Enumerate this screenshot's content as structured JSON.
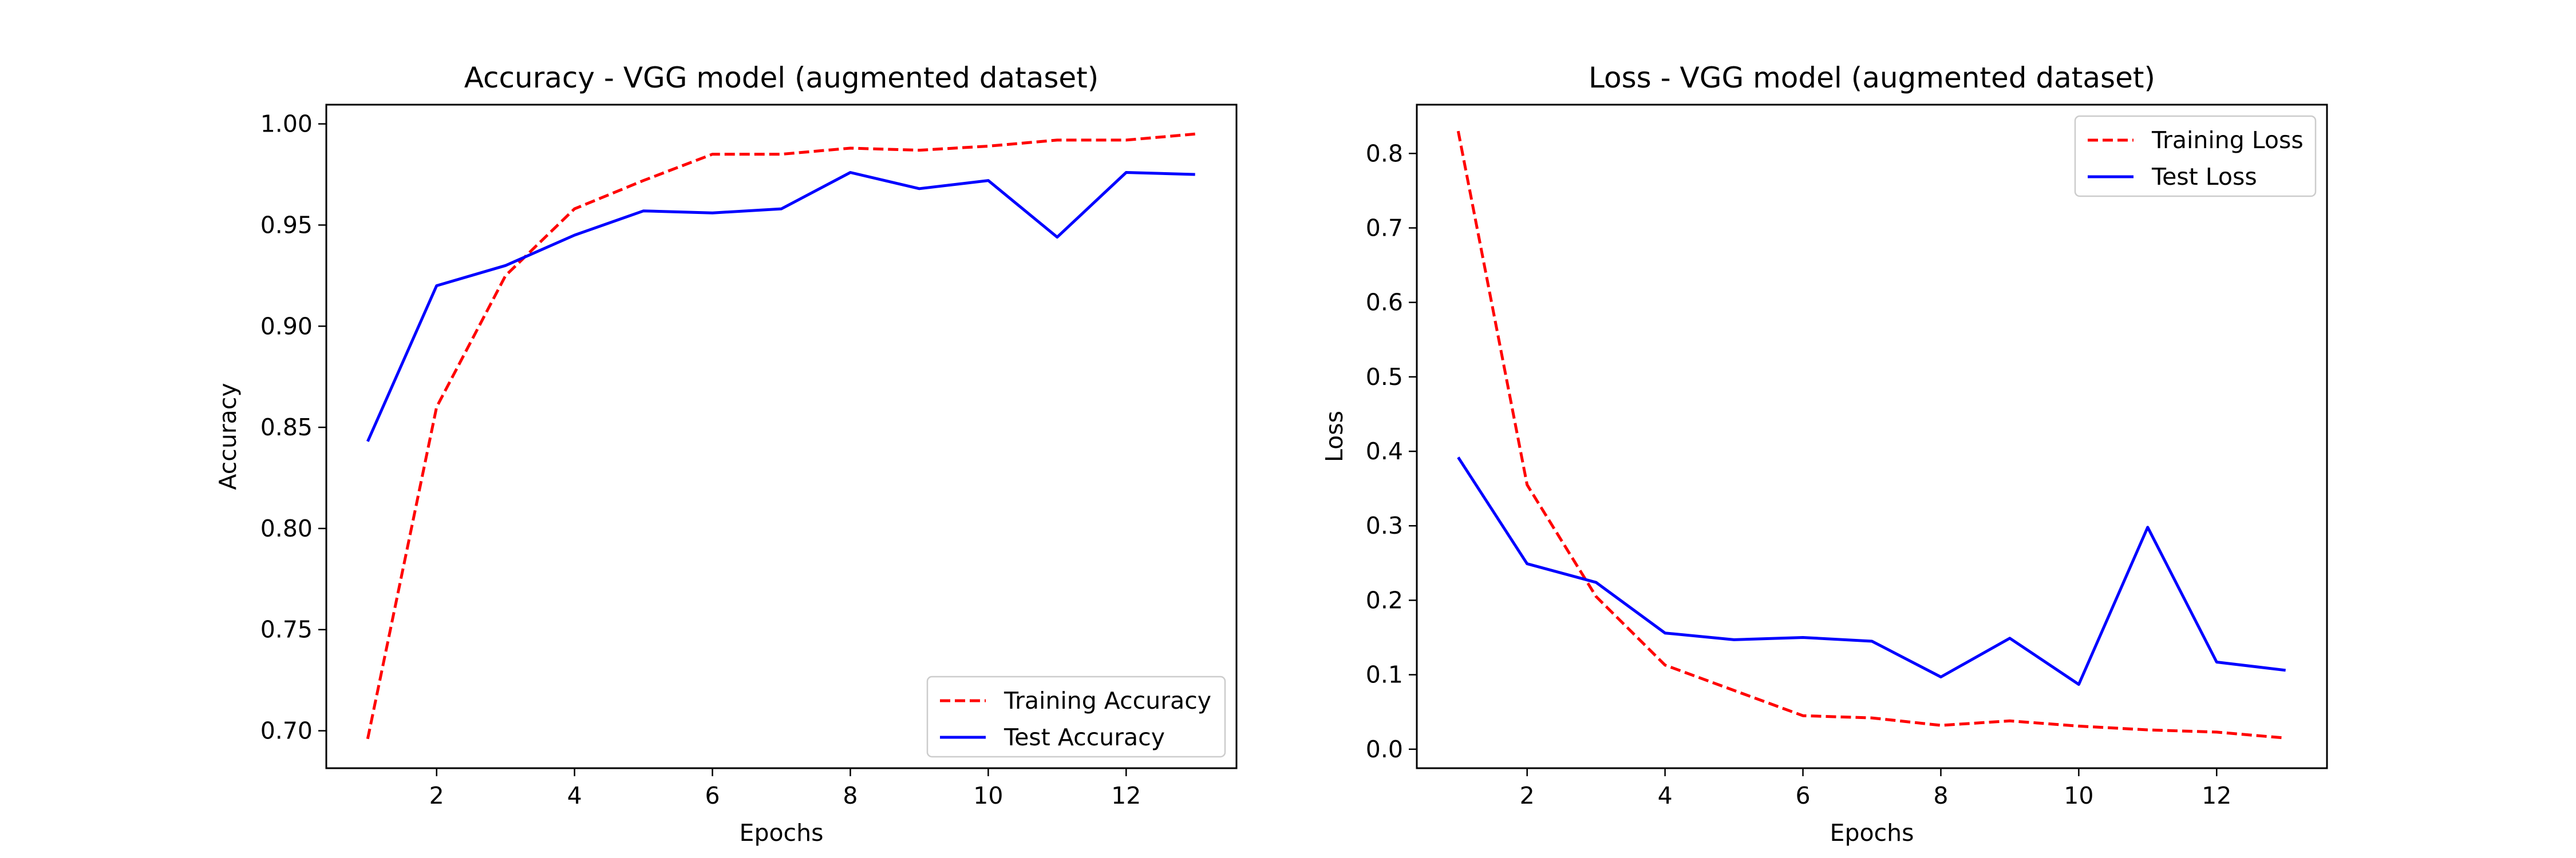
{
  "chart_data": [
    {
      "type": "line",
      "title": "Accuracy - VGG model (augmented dataset)",
      "xlabel": "Epochs",
      "ylabel": "Accuracy",
      "xlim": [
        0.4,
        13.6
      ],
      "ylim": [
        0.6815,
        1.0095
      ],
      "x_ticks": [
        2,
        4,
        6,
        8,
        10,
        12
      ],
      "y_ticks": [
        0.7,
        0.75,
        0.8,
        0.85,
        0.9,
        0.95,
        1.0
      ],
      "x_tick_labels": [
        "2",
        "4",
        "6",
        "8",
        "10",
        "12"
      ],
      "y_tick_labels": [
        "0.70",
        "0.75",
        "0.80",
        "0.85",
        "0.90",
        "0.95",
        "1.00"
      ],
      "grid": false,
      "legend_position": "lower-right",
      "x": [
        1,
        2,
        3,
        4,
        5,
        6,
        7,
        8,
        9,
        10,
        11,
        12,
        13
      ],
      "series": [
        {
          "name": "Training Accuracy",
          "color": "#ff0000",
          "style": "dashed",
          "values": [
            0.696,
            0.86,
            0.925,
            0.958,
            0.972,
            0.985,
            0.985,
            0.988,
            0.987,
            0.989,
            0.992,
            0.992,
            0.995
          ]
        },
        {
          "name": "Test Accuracy",
          "color": "#0000ff",
          "style": "solid",
          "values": [
            0.843,
            0.92,
            0.93,
            0.945,
            0.957,
            0.956,
            0.958,
            0.976,
            0.968,
            0.972,
            0.944,
            0.976,
            0.975
          ]
        }
      ]
    },
    {
      "type": "line",
      "title": "Loss - VGG model (augmented dataset)",
      "xlabel": "Epochs",
      "ylabel": "Loss",
      "xlim": [
        0.4,
        13.6
      ],
      "ylim": [
        -0.0255,
        0.8655
      ],
      "x_ticks": [
        2,
        4,
        6,
        8,
        10,
        12
      ],
      "y_ticks": [
        0.0,
        0.1,
        0.2,
        0.3,
        0.4,
        0.5,
        0.6,
        0.7,
        0.8
      ],
      "x_tick_labels": [
        "2",
        "4",
        "6",
        "8",
        "10",
        "12"
      ],
      "y_tick_labels": [
        "0.0",
        "0.1",
        "0.2",
        "0.3",
        "0.4",
        "0.5",
        "0.6",
        "0.7",
        "0.8"
      ],
      "grid": false,
      "legend_position": "upper-right",
      "x": [
        1,
        2,
        3,
        4,
        5,
        6,
        7,
        8,
        9,
        10,
        11,
        12,
        13
      ],
      "series": [
        {
          "name": "Training Loss",
          "color": "#ff0000",
          "style": "dashed",
          "values": [
            0.83,
            0.355,
            0.205,
            0.113,
            0.079,
            0.045,
            0.042,
            0.032,
            0.038,
            0.031,
            0.026,
            0.023,
            0.015
          ]
        },
        {
          "name": "Test Loss",
          "color": "#0000ff",
          "style": "solid",
          "values": [
            0.392,
            0.249,
            0.224,
            0.156,
            0.147,
            0.15,
            0.145,
            0.097,
            0.149,
            0.087,
            0.298,
            0.117,
            0.106
          ]
        }
      ]
    }
  ]
}
